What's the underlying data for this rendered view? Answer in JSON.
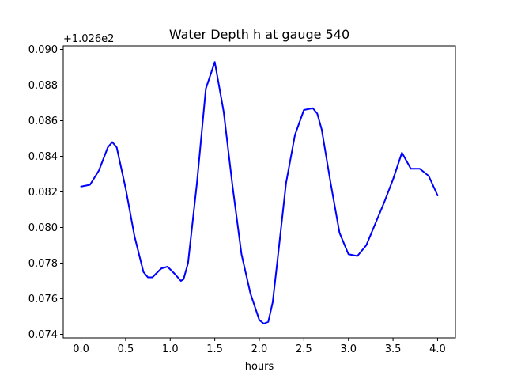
{
  "chart_data": {
    "type": "line",
    "title": "Water Depth h at gauge 540",
    "xlabel": "hours",
    "ylabel": "",
    "offset_label": "+1.026e2",
    "xlim": [
      -0.2,
      4.2
    ],
    "ylim": [
      0.0738,
      0.0902
    ],
    "xticks": [
      0.0,
      0.5,
      1.0,
      1.5,
      2.0,
      2.5,
      3.0,
      3.5,
      4.0
    ],
    "xtick_labels": [
      "0.0",
      "0.5",
      "1.0",
      "1.5",
      "2.0",
      "2.5",
      "3.0",
      "3.5",
      "4.0"
    ],
    "yticks": [
      0.074,
      0.076,
      0.078,
      0.08,
      0.082,
      0.084,
      0.086,
      0.088,
      0.09
    ],
    "ytick_labels": [
      "0.074",
      "0.076",
      "0.078",
      "0.080",
      "0.082",
      "0.084",
      "0.086",
      "0.088",
      "0.090"
    ],
    "grid": false,
    "series": [
      {
        "color": "#0000ff",
        "x": [
          0.0,
          0.1,
          0.2,
          0.3,
          0.35,
          0.4,
          0.5,
          0.6,
          0.7,
          0.75,
          0.8,
          0.9,
          0.97,
          1.05,
          1.12,
          1.15,
          1.2,
          1.3,
          1.4,
          1.5,
          1.6,
          1.7,
          1.8,
          1.9,
          2.0,
          2.05,
          2.1,
          2.15,
          2.2,
          2.3,
          2.4,
          2.5,
          2.6,
          2.65,
          2.7,
          2.8,
          2.9,
          3.0,
          3.1,
          3.2,
          3.3,
          3.4,
          3.5,
          3.6,
          3.7,
          3.8,
          3.9,
          4.0
        ],
        "y": [
          0.0823,
          0.0824,
          0.0832,
          0.0845,
          0.0848,
          0.0845,
          0.0822,
          0.0795,
          0.0775,
          0.0772,
          0.0772,
          0.0777,
          0.0778,
          0.0774,
          0.077,
          0.0771,
          0.078,
          0.0825,
          0.0878,
          0.0893,
          0.0865,
          0.0823,
          0.0785,
          0.0763,
          0.0748,
          0.0746,
          0.0747,
          0.0758,
          0.078,
          0.0825,
          0.0852,
          0.0866,
          0.0867,
          0.0864,
          0.0855,
          0.0825,
          0.0797,
          0.0785,
          0.0784,
          0.079,
          0.0802,
          0.0814,
          0.0827,
          0.0842,
          0.0833,
          0.0833,
          0.0829,
          0.0818
        ]
      }
    ]
  }
}
